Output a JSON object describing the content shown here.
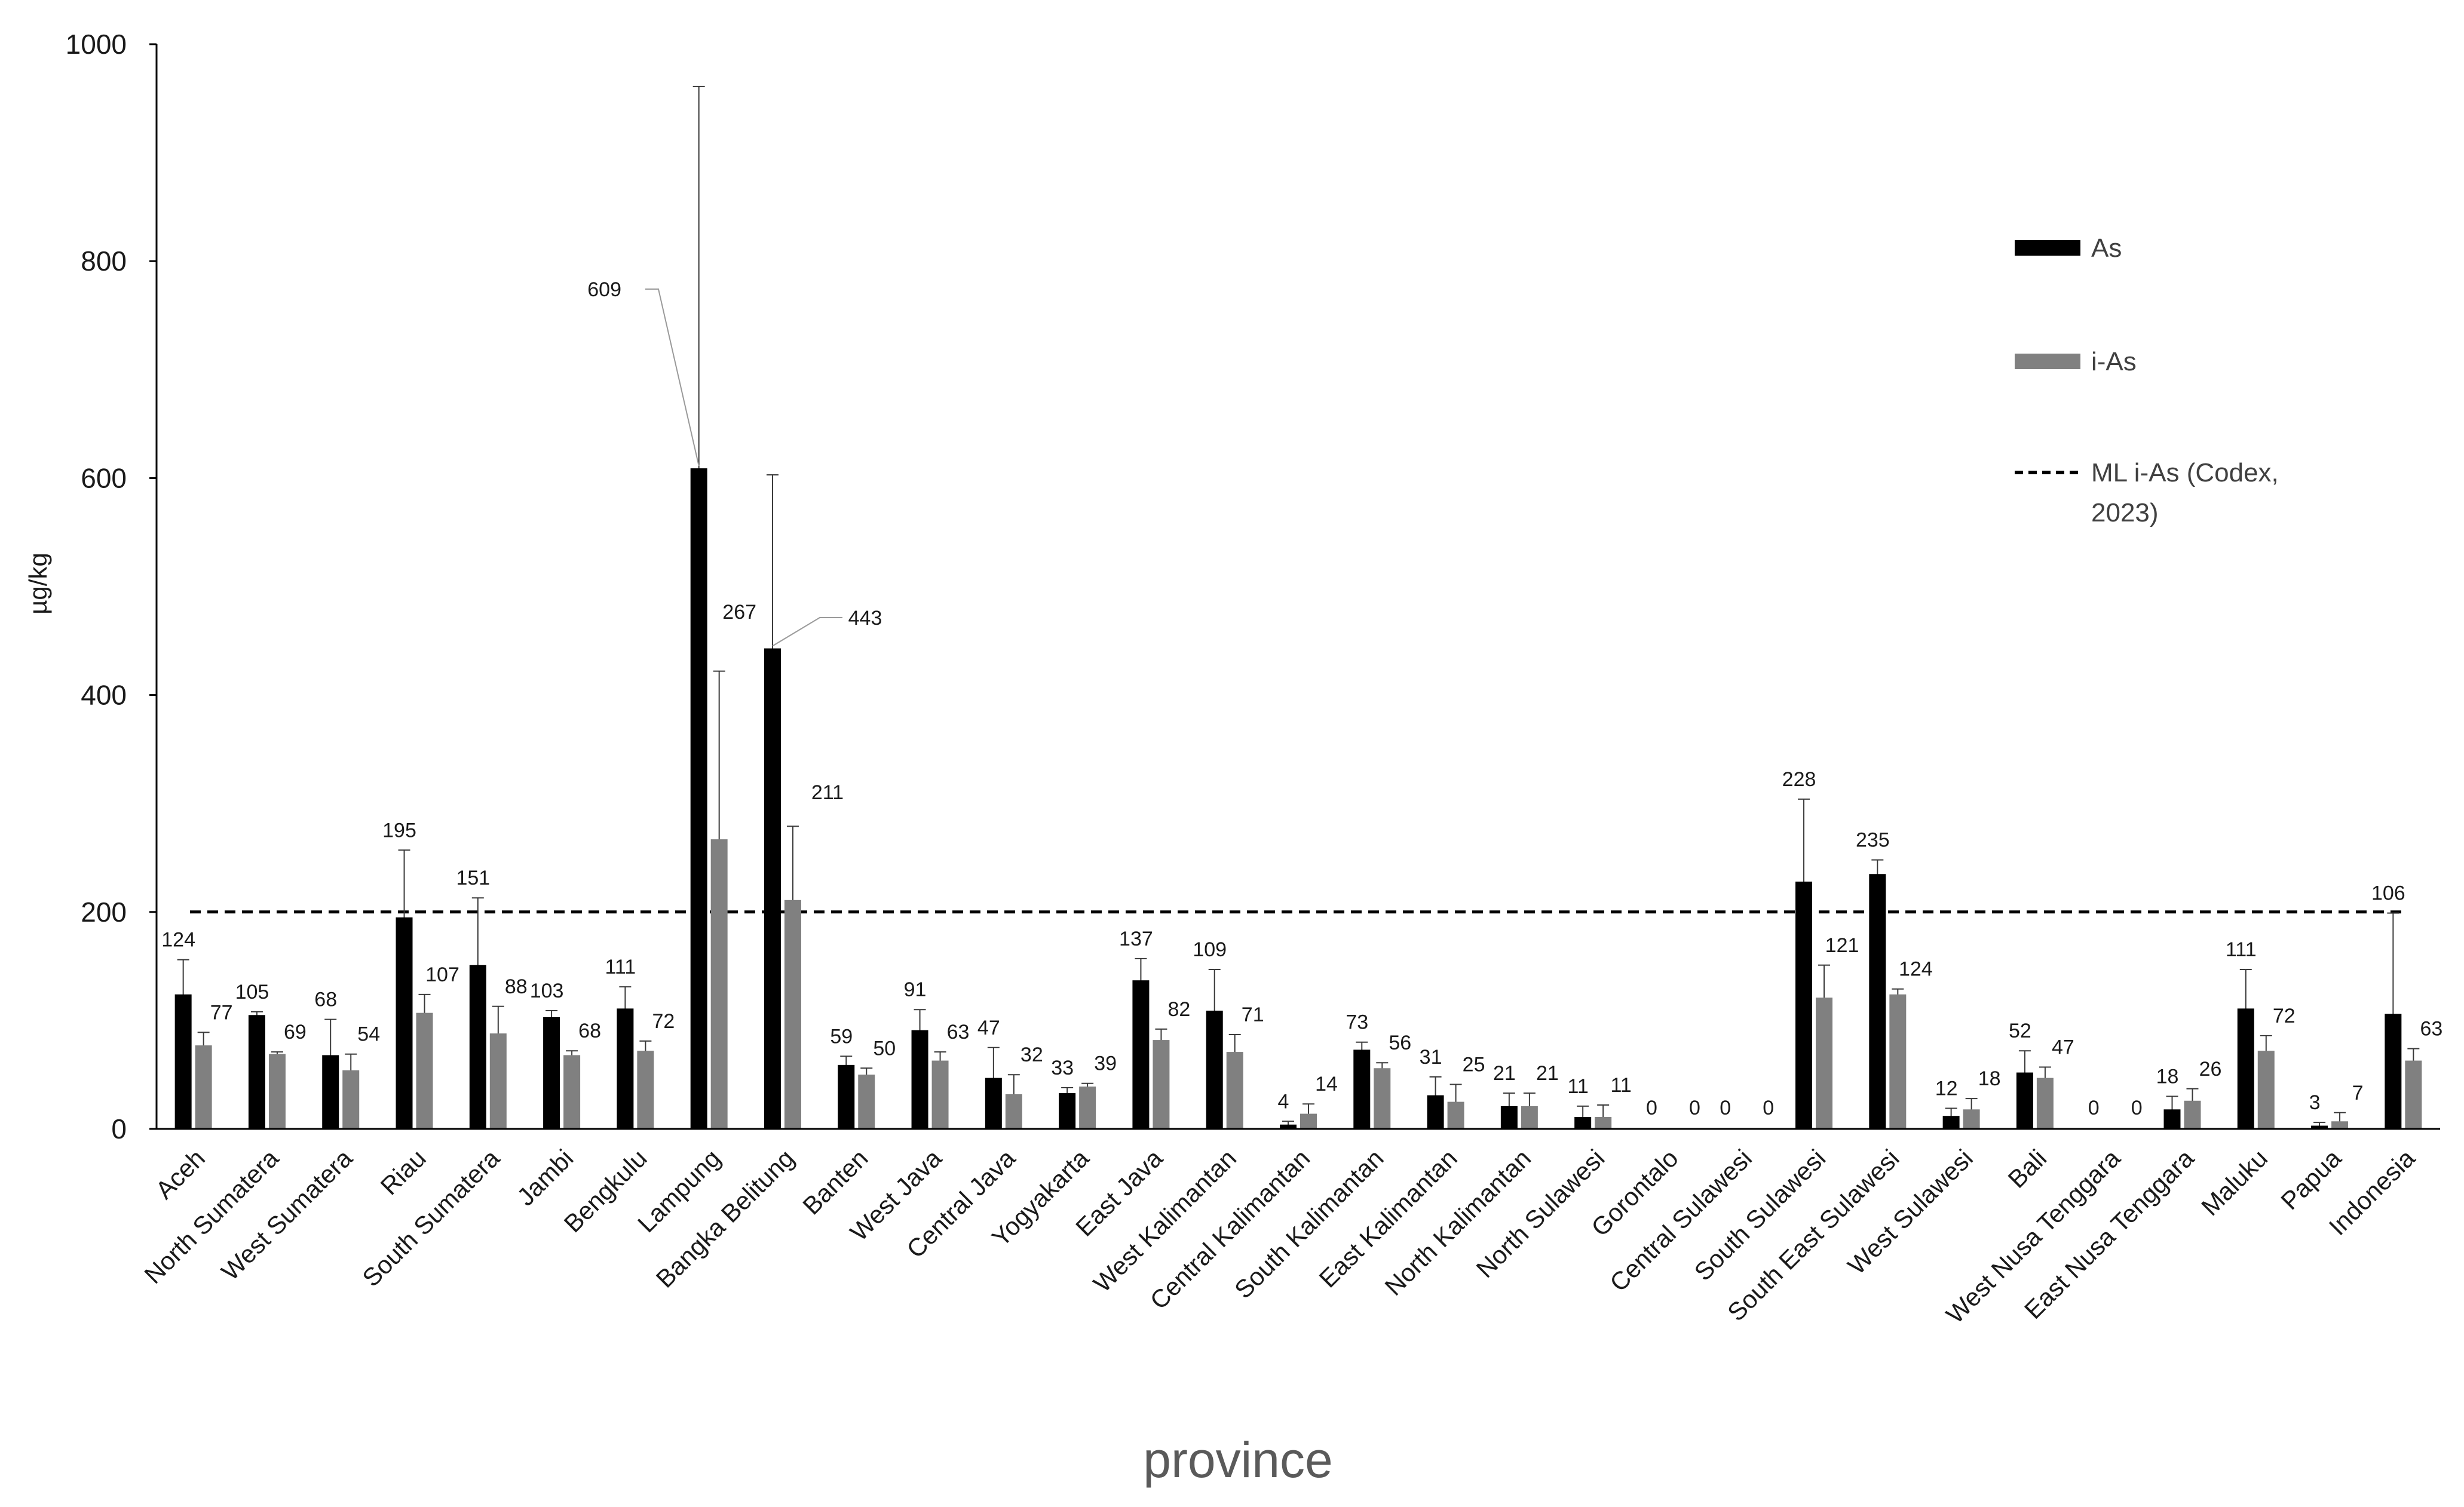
{
  "chart_data": {
    "type": "bar",
    "title": "",
    "xlabel": "province",
    "ylabel": "µg/kg",
    "ylim": [
      0,
      1000
    ],
    "yticks": [
      "0",
      "200",
      "400",
      "600",
      "800",
      "1000"
    ],
    "categories": [
      "Aceh",
      "North Sumatera",
      "West Sumatera",
      "Riau",
      "South Sumatera",
      "Jambi",
      "Bengkulu",
      "Lampung",
      "Bangka Belitung",
      "Banten",
      "West Java",
      "Central Java",
      "Yogyakarta",
      "East Java",
      "West Kalimantan",
      "Central Kalimantan",
      "South Kalimantan",
      "East Kalimantan",
      "North Kalimantan",
      "North Sulawesi",
      "Gorontalo",
      "Central Sulawesi",
      "South Sulawesi",
      "South East Sulawesi",
      "West Sulawesi",
      "Bali",
      "West Nusa Tenggara",
      "East Nusa Tenggara",
      "Maluku",
      "Papua",
      "Indonesia"
    ],
    "series": [
      {
        "name": "As",
        "color": "#000000",
        "values": [
          124,
          105,
          68,
          195,
          151,
          103,
          111,
          609,
          443,
          59,
          91,
          47,
          33,
          137,
          109,
          4,
          73,
          31,
          21,
          11,
          0,
          0,
          228,
          235,
          12,
          52,
          0,
          18,
          111,
          3,
          106
        ],
        "labels": [
          "124",
          "105",
          "68",
          "195",
          "151",
          "103",
          "111",
          "609",
          "443",
          "59",
          "91",
          "47",
          "33",
          "137",
          "109",
          "4",
          "73",
          "31",
          "21",
          "11",
          "0",
          "0",
          "228",
          "235",
          "12",
          "52",
          "0",
          "18",
          "111",
          "3",
          "106"
        ],
        "errors": [
          32,
          3,
          33,
          62,
          62,
          6,
          20,
          352,
          160,
          8,
          19,
          28,
          5,
          20,
          38,
          3,
          7,
          17,
          12,
          10,
          0,
          0,
          76,
          13,
          7,
          20,
          0,
          12,
          36,
          3,
          93
        ]
      },
      {
        "name": "i-As",
        "color": "#808080",
        "values": [
          77,
          69,
          54,
          107,
          88,
          68,
          72,
          267,
          211,
          50,
          63,
          32,
          39,
          82,
          71,
          14,
          56,
          25,
          21,
          11,
          0,
          0,
          121,
          124,
          18,
          47,
          0,
          26,
          72,
          7,
          63
        ],
        "labels": [
          "77",
          "69",
          "54",
          "107",
          "88",
          "68",
          "72",
          "267",
          "211",
          "50",
          "63",
          "32",
          "39",
          "82",
          "71",
          "14",
          "56",
          "25",
          "21",
          "11",
          "0",
          "0",
          "121",
          "124",
          "18",
          "47",
          "0",
          "26",
          "72",
          "7",
          "63"
        ],
        "errors": [
          12,
          2,
          15,
          17,
          25,
          4,
          9,
          155,
          68,
          6,
          8,
          18,
          3,
          10,
          16,
          9,
          5,
          16,
          12,
          11,
          0,
          0,
          30,
          5,
          10,
          10,
          0,
          11,
          14,
          8,
          11
        ]
      }
    ],
    "reference_line": {
      "name": "ML i-As (Codex, 2023)",
      "value": 200,
      "style": "dashed",
      "color": "#000000"
    },
    "legend": {
      "position": "top-right",
      "entries": [
        "As",
        "i-As",
        "ML i-As (Codex,",
        "2023)"
      ]
    }
  }
}
